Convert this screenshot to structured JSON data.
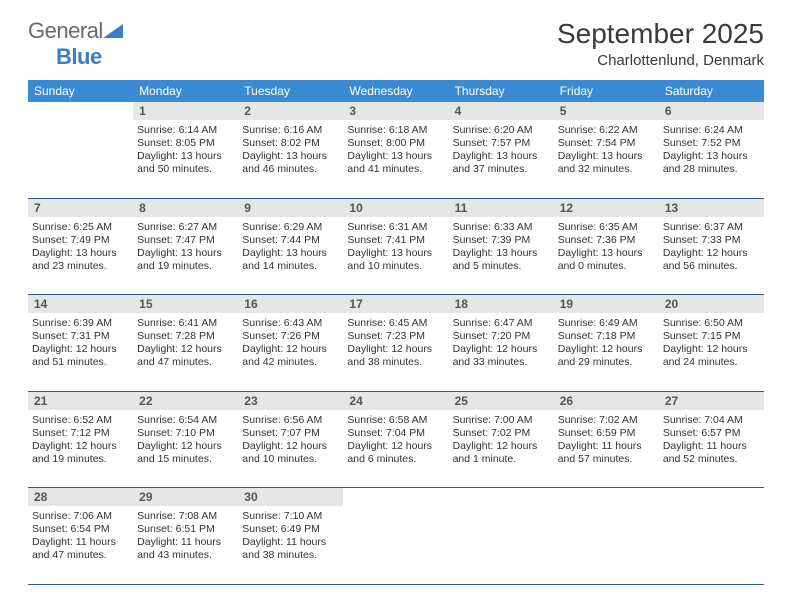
{
  "logo": {
    "text1": "General",
    "text2": "Blue"
  },
  "title": "September 2025",
  "location": "Charlottenlund, Denmark",
  "colors": {
    "header_bg": "#3b8bd4",
    "header_text": "#ffffff",
    "daynum_bg": "#e6e6e6",
    "daynum_text": "#555555",
    "rule": "#2a5f8f",
    "body_text": "#333333",
    "logo_gray": "#6a6a6a",
    "logo_blue": "#3b7fc4"
  },
  "dow": [
    "Sunday",
    "Monday",
    "Tuesday",
    "Wednesday",
    "Thursday",
    "Friday",
    "Saturday"
  ],
  "weeks": [
    [
      null,
      {
        "n": "1",
        "sr": "6:14 AM",
        "ss": "8:05 PM",
        "dl": "13 hours and 50 minutes."
      },
      {
        "n": "2",
        "sr": "6:16 AM",
        "ss": "8:02 PM",
        "dl": "13 hours and 46 minutes."
      },
      {
        "n": "3",
        "sr": "6:18 AM",
        "ss": "8:00 PM",
        "dl": "13 hours and 41 minutes."
      },
      {
        "n": "4",
        "sr": "6:20 AM",
        "ss": "7:57 PM",
        "dl": "13 hours and 37 minutes."
      },
      {
        "n": "5",
        "sr": "6:22 AM",
        "ss": "7:54 PM",
        "dl": "13 hours and 32 minutes."
      },
      {
        "n": "6",
        "sr": "6:24 AM",
        "ss": "7:52 PM",
        "dl": "13 hours and 28 minutes."
      }
    ],
    [
      {
        "n": "7",
        "sr": "6:25 AM",
        "ss": "7:49 PM",
        "dl": "13 hours and 23 minutes."
      },
      {
        "n": "8",
        "sr": "6:27 AM",
        "ss": "7:47 PM",
        "dl": "13 hours and 19 minutes."
      },
      {
        "n": "9",
        "sr": "6:29 AM",
        "ss": "7:44 PM",
        "dl": "13 hours and 14 minutes."
      },
      {
        "n": "10",
        "sr": "6:31 AM",
        "ss": "7:41 PM",
        "dl": "13 hours and 10 minutes."
      },
      {
        "n": "11",
        "sr": "6:33 AM",
        "ss": "7:39 PM",
        "dl": "13 hours and 5 minutes."
      },
      {
        "n": "12",
        "sr": "6:35 AM",
        "ss": "7:36 PM",
        "dl": "13 hours and 0 minutes."
      },
      {
        "n": "13",
        "sr": "6:37 AM",
        "ss": "7:33 PM",
        "dl": "12 hours and 56 minutes."
      }
    ],
    [
      {
        "n": "14",
        "sr": "6:39 AM",
        "ss": "7:31 PM",
        "dl": "12 hours and 51 minutes."
      },
      {
        "n": "15",
        "sr": "6:41 AM",
        "ss": "7:28 PM",
        "dl": "12 hours and 47 minutes."
      },
      {
        "n": "16",
        "sr": "6:43 AM",
        "ss": "7:26 PM",
        "dl": "12 hours and 42 minutes."
      },
      {
        "n": "17",
        "sr": "6:45 AM",
        "ss": "7:23 PM",
        "dl": "12 hours and 38 minutes."
      },
      {
        "n": "18",
        "sr": "6:47 AM",
        "ss": "7:20 PM",
        "dl": "12 hours and 33 minutes."
      },
      {
        "n": "19",
        "sr": "6:49 AM",
        "ss": "7:18 PM",
        "dl": "12 hours and 29 minutes."
      },
      {
        "n": "20",
        "sr": "6:50 AM",
        "ss": "7:15 PM",
        "dl": "12 hours and 24 minutes."
      }
    ],
    [
      {
        "n": "21",
        "sr": "6:52 AM",
        "ss": "7:12 PM",
        "dl": "12 hours and 19 minutes."
      },
      {
        "n": "22",
        "sr": "6:54 AM",
        "ss": "7:10 PM",
        "dl": "12 hours and 15 minutes."
      },
      {
        "n": "23",
        "sr": "6:56 AM",
        "ss": "7:07 PM",
        "dl": "12 hours and 10 minutes."
      },
      {
        "n": "24",
        "sr": "6:58 AM",
        "ss": "7:04 PM",
        "dl": "12 hours and 6 minutes."
      },
      {
        "n": "25",
        "sr": "7:00 AM",
        "ss": "7:02 PM",
        "dl": "12 hours and 1 minute."
      },
      {
        "n": "26",
        "sr": "7:02 AM",
        "ss": "6:59 PM",
        "dl": "11 hours and 57 minutes."
      },
      {
        "n": "27",
        "sr": "7:04 AM",
        "ss": "6:57 PM",
        "dl": "11 hours and 52 minutes."
      }
    ],
    [
      {
        "n": "28",
        "sr": "7:06 AM",
        "ss": "6:54 PM",
        "dl": "11 hours and 47 minutes."
      },
      {
        "n": "29",
        "sr": "7:08 AM",
        "ss": "6:51 PM",
        "dl": "11 hours and 43 minutes."
      },
      {
        "n": "30",
        "sr": "7:10 AM",
        "ss": "6:49 PM",
        "dl": "11 hours and 38 minutes."
      },
      null,
      null,
      null,
      null
    ]
  ],
  "labels": {
    "sunrise": "Sunrise:",
    "sunset": "Sunset:",
    "daylight": "Daylight:"
  }
}
